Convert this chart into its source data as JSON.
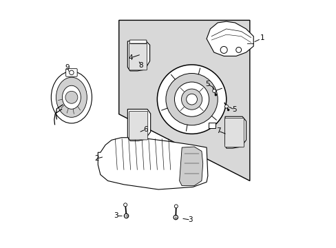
{
  "bg_color": "#ffffff",
  "line_color": "#000000",
  "shaded_color": "#d8d8d8",
  "fig_width": 4.89,
  "fig_height": 3.6,
  "dpi": 100
}
